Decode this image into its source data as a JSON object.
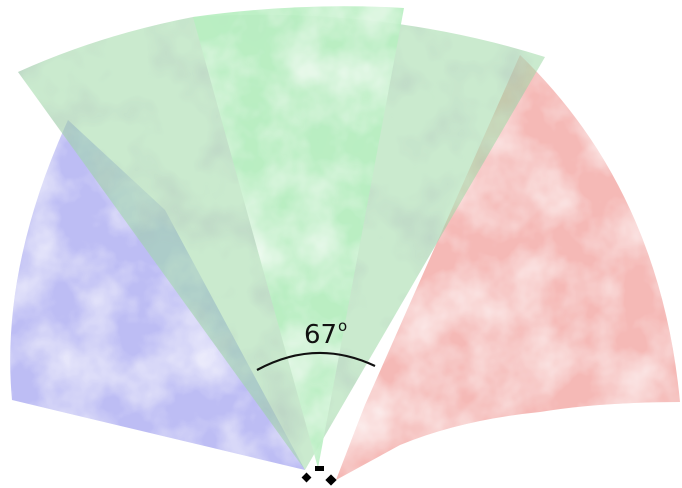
{
  "diagram": {
    "angle_value": "67",
    "angle_unit": "o",
    "sectors": [
      {
        "name": "left-sector",
        "color": "#b9b9f3"
      },
      {
        "name": "center-sector",
        "color": "#b8efc1"
      },
      {
        "name": "right-sector",
        "color": "#f4b5b2"
      }
    ],
    "arc_color": "#111111",
    "marker_color": "#000000"
  }
}
